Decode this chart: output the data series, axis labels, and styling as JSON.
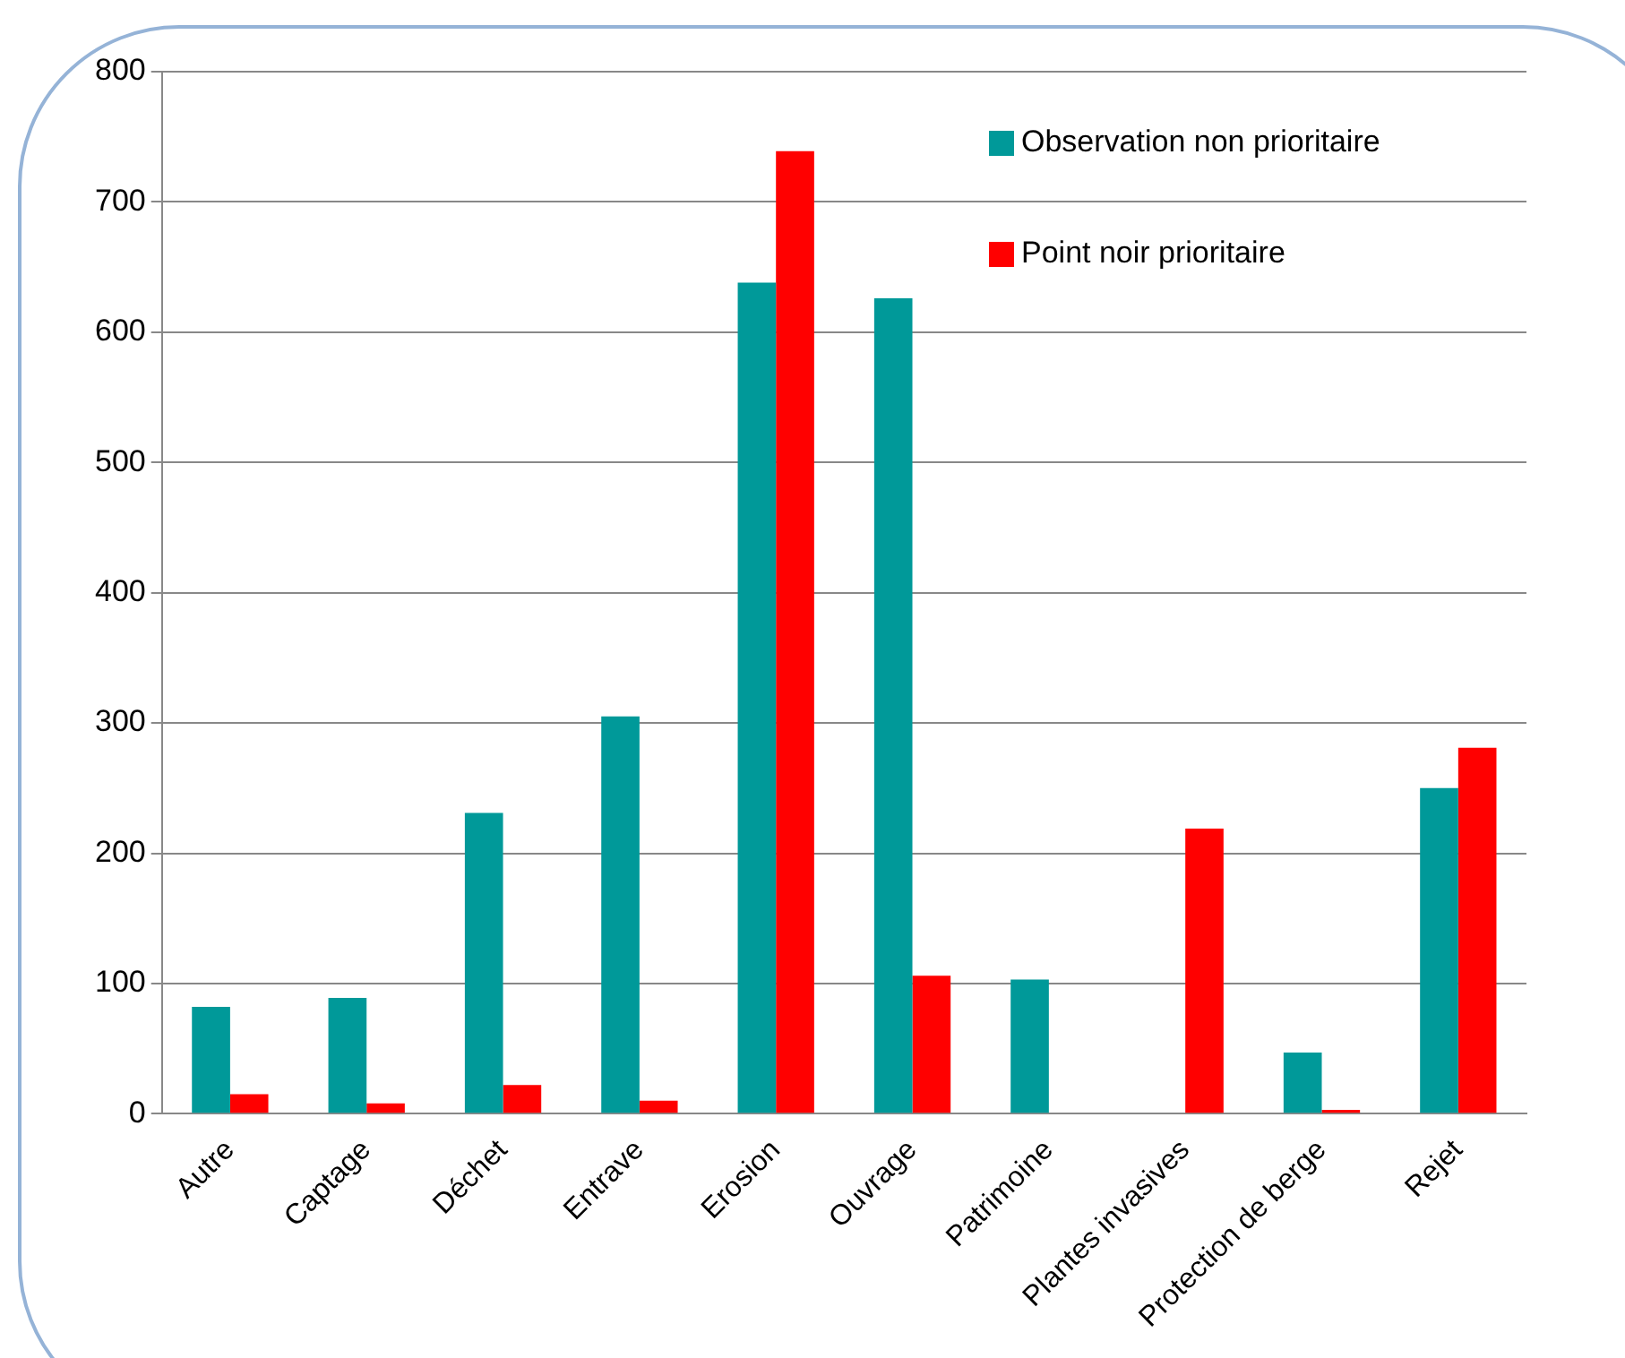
{
  "chart_data": {
    "type": "bar",
    "categories": [
      "Autre",
      "Captage",
      "Déchet",
      "Entrave",
      "Erosion",
      "Ouvrage",
      "Patrimoine",
      "Plantes invasives",
      "Protection de berge",
      "Rejet"
    ],
    "series": [
      {
        "name": "Observation non prioritaire",
        "color": "#009999",
        "values": [
          82,
          89,
          231,
          305,
          638,
          626,
          103,
          0,
          47,
          250
        ]
      },
      {
        "name": "Point noir prioritaire",
        "color": "#ff0000",
        "values": [
          15,
          8,
          22,
          10,
          739,
          106,
          0,
          219,
          3,
          281
        ]
      }
    ],
    "ylim": [
      0,
      800
    ],
    "yticks": [
      0,
      100,
      200,
      300,
      400,
      500,
      600,
      700,
      800
    ],
    "grid": "y",
    "legend": "top right"
  }
}
